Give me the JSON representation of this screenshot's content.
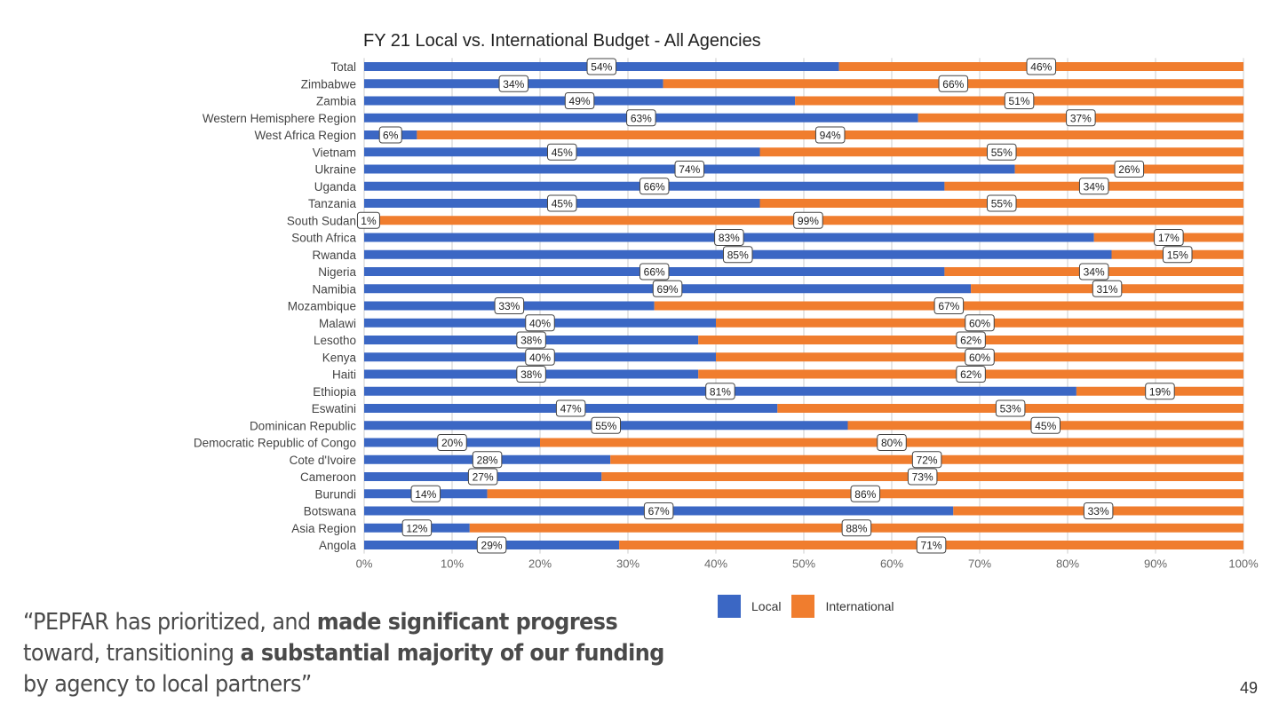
{
  "slide": {
    "page_number": "49",
    "quote": {
      "line1_normal": "“PEPFAR has prioritized, and ",
      "line1_bold": "made significant progress",
      "line2_normal": "toward, transitioning ",
      "line2_bold": "a substantial majority of our funding",
      "line3_normal": "by agency to local partners”"
    }
  },
  "colors": {
    "local": "#3b67c4",
    "international": "#f07d2e",
    "grid": "#cccccc"
  },
  "chart_data": {
    "type": "bar",
    "orientation": "horizontal",
    "stacked": true,
    "title": "FY 21 Local vs. International Budget - All Agencies",
    "xlabel": "",
    "ylabel": "",
    "xlim": [
      0,
      100
    ],
    "x_ticks": [
      "0%",
      "10%",
      "20%",
      "30%",
      "40%",
      "50%",
      "60%",
      "70%",
      "80%",
      "90%",
      "100%"
    ],
    "grid": true,
    "legend": {
      "position": "bottom",
      "entries": [
        "Local",
        "International"
      ]
    },
    "categories": [
      "Total",
      "Zimbabwe",
      "Zambia",
      "Western Hemisphere Region",
      "West Africa Region",
      "Vietnam",
      "Ukraine",
      "Uganda",
      "Tanzania",
      "South Sudan",
      "South Africa",
      "Rwanda",
      "Nigeria",
      "Namibia",
      "Mozambique",
      "Malawi",
      "Lesotho",
      "Kenya",
      "Haiti",
      "Ethiopia",
      "Eswatini",
      "Dominican Republic",
      "Democratic Republic of Congo",
      "Cote d'Ivoire",
      "Cameroon",
      "Burundi",
      "Botswana",
      "Asia Region",
      "Angola"
    ],
    "series": [
      {
        "name": "Local",
        "values": [
          54,
          34,
          49,
          63,
          6,
          45,
          74,
          66,
          45,
          1,
          83,
          85,
          66,
          69,
          33,
          40,
          38,
          40,
          38,
          81,
          47,
          55,
          20,
          28,
          27,
          14,
          67,
          12,
          29
        ]
      },
      {
        "name": "International",
        "values": [
          46,
          66,
          51,
          37,
          94,
          55,
          26,
          34,
          55,
          99,
          17,
          15,
          34,
          31,
          67,
          60,
          62,
          60,
          62,
          19,
          53,
          45,
          80,
          72,
          73,
          86,
          33,
          88,
          71
        ]
      }
    ],
    "data_label_suffix": "%"
  }
}
